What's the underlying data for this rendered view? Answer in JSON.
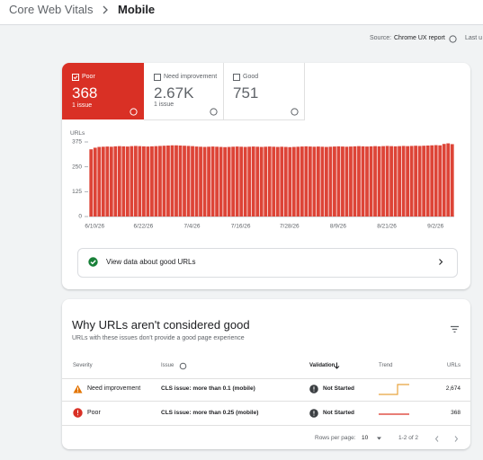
{
  "breadcrumb": {
    "parent": "Core Web Vitals",
    "current": "Mobile"
  },
  "source": {
    "label": "Source:",
    "link": "Chrome UX report",
    "last": "Last u"
  },
  "tabs": [
    {
      "label": "Poor",
      "value": "368",
      "sub": "1 issue"
    },
    {
      "label": "Need improvement",
      "value": "2.67K",
      "sub": "1 issue"
    },
    {
      "label": "Good",
      "value": "751"
    }
  ],
  "chart_data": {
    "type": "bar",
    "y_label": "URLs",
    "color": "#dd4437",
    "categories": [
      "6/10/26",
      null,
      null,
      null,
      null,
      null,
      null,
      null,
      null,
      null,
      null,
      null,
      "6/22/26",
      null,
      null,
      null,
      null,
      null,
      null,
      null,
      null,
      null,
      null,
      null,
      "7/4/26",
      null,
      null,
      null,
      null,
      null,
      null,
      null,
      null,
      null,
      null,
      null,
      "7/16/26",
      null,
      null,
      null,
      null,
      null,
      null,
      null,
      null,
      null,
      null,
      null,
      "7/28/26",
      null,
      null,
      null,
      null,
      null,
      null,
      null,
      null,
      null,
      null,
      null,
      "8/9/26",
      null,
      null,
      null,
      null,
      null,
      null,
      null,
      null,
      null,
      null,
      null,
      "8/21/26",
      null,
      null,
      null,
      null,
      null,
      null,
      null,
      null,
      null,
      null,
      null,
      "9/2/26",
      null,
      null,
      null,
      null,
      null
    ],
    "values": [
      338,
      346,
      350,
      351,
      352,
      351,
      353,
      354,
      353,
      352,
      354,
      355,
      354,
      353,
      352,
      353,
      354,
      355,
      356,
      357,
      358,
      358,
      357,
      356,
      355,
      354,
      352,
      351,
      350,
      351,
      352,
      351,
      350,
      349,
      350,
      351,
      352,
      351,
      350,
      351,
      352,
      351,
      350,
      351,
      352,
      351,
      350,
      351,
      350,
      349,
      350,
      351,
      352,
      353,
      352,
      351,
      352,
      351,
      350,
      351,
      352,
      353,
      352,
      351,
      352,
      353,
      354,
      353,
      352,
      353,
      354,
      353,
      354,
      355,
      354,
      353,
      354,
      355,
      354,
      355,
      356,
      355,
      356,
      357,
      358,
      359,
      358,
      365,
      368,
      364
    ],
    "ylim": [
      0,
      375
    ],
    "yticks": [
      0,
      125,
      250,
      375
    ],
    "grid": false
  },
  "good_link": "View data about good URLs",
  "issues": {
    "title": "Why URLs aren't considered good",
    "subtitle": "URLs with these issues don't provide a good page experience",
    "headers": {
      "severity": "Severity",
      "issue": "Issue",
      "validation": "Validation",
      "trend": "Trend",
      "urls": "URLs"
    },
    "rows": [
      {
        "severity": "Need improvement",
        "issue": "CLS issue: more than 0.1 (mobile)",
        "validation": "Not Started",
        "urls": "2,674"
      },
      {
        "severity": "Poor",
        "issue": "CLS issue: more than 0.25 (mobile)",
        "validation": "Not Started",
        "urls": "368"
      }
    ],
    "pagination": {
      "label": "Rows per page:",
      "per_page": "10",
      "range": "1-2 of 2"
    }
  }
}
